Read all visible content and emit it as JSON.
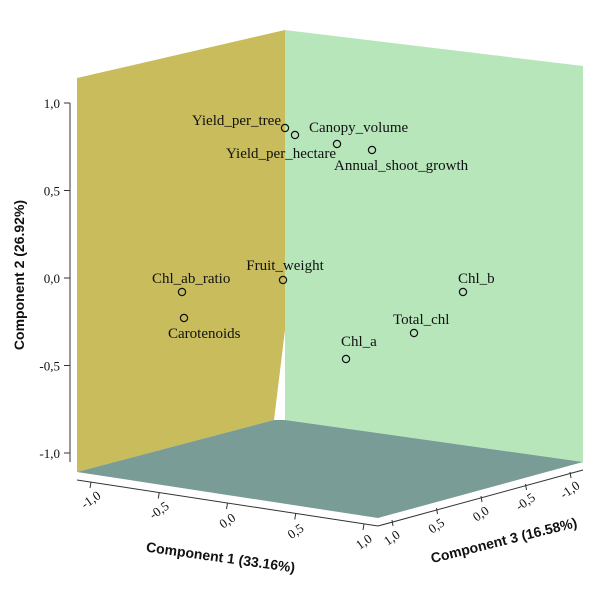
{
  "chart_data": {
    "type": "scatter",
    "variant": "3d-loading-plot",
    "title": "",
    "axes": {
      "x": {
        "label": "Component 1 (33.16%)",
        "range": [
          -1.0,
          1.0
        ],
        "ticks": [
          "-1,0",
          "-0,5",
          "0,0",
          "0,5",
          "1,0"
        ]
      },
      "y": {
        "label": "Component 2 (26.92%)",
        "range": [
          -1.0,
          1.0
        ],
        "ticks": [
          "-1,0",
          "-0,5",
          "0,0",
          "0,5",
          "1,0"
        ]
      },
      "z": {
        "label": "Component 3 (16.58%)",
        "range": [
          -1.0,
          1.0
        ],
        "ticks": [
          "1,0",
          "0,5",
          "0,0",
          "-0,5",
          "-1,0"
        ]
      }
    },
    "colors": {
      "left_wall": "#c8bc5c",
      "right_wall": "#b8e6bb",
      "floor": "#7a9c96"
    },
    "points": [
      {
        "label": "Yield_per_tree",
        "x": 0.0,
        "y": 0.85,
        "z": 0.05
      },
      {
        "label": "Canopy_volume",
        "x": 0.15,
        "y": 0.82,
        "z": 0.1
      },
      {
        "label": "Yield_per_hectare",
        "x": 0.35,
        "y": 0.77,
        "z": 0.05
      },
      {
        "label": "Annual_shoot_growth",
        "x": 0.55,
        "y": 0.73,
        "z": 0.0
      },
      {
        "label": "Fruit_weight",
        "x": 0.05,
        "y": 0.0,
        "z": 0.0
      },
      {
        "label": "Chl_ab_ratio",
        "x": -0.3,
        "y": -0.07,
        "z": -0.1
      },
      {
        "label": "Carotenoids",
        "x": -0.3,
        "y": -0.23,
        "z": -0.1
      },
      {
        "label": "Chl_b",
        "x": 0.7,
        "y": -0.08,
        "z": -0.7
      },
      {
        "label": "Total_chl",
        "x": 0.6,
        "y": -0.31,
        "z": -0.6
      },
      {
        "label": "Chl_a",
        "x": 0.55,
        "y": -0.46,
        "z": -0.55
      }
    ]
  }
}
